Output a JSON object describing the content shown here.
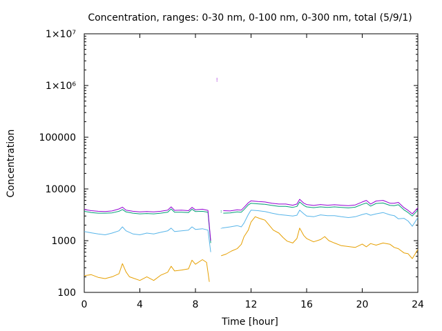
{
  "chart_data": {
    "type": "line",
    "title": "Concentration, ranges: 0-30 nm, 0-100 nm, 0-300 nm, total (5/9/1)",
    "xlabel": "Time [hour]",
    "ylabel": "Concentration",
    "xlim": [
      0,
      24
    ],
    "ylim": [
      100,
      10000000
    ],
    "y_scale": "log",
    "grid": false,
    "legend": "none",
    "x_ticks": [
      {
        "value": 0,
        "label": "0"
      },
      {
        "value": 4,
        "label": "4"
      },
      {
        "value": 8,
        "label": "8"
      },
      {
        "value": 12,
        "label": "12"
      },
      {
        "value": 16,
        "label": "16"
      },
      {
        "value": 20,
        "label": "20"
      },
      {
        "value": 24,
        "label": "24"
      }
    ],
    "y_ticks": [
      {
        "value": 100,
        "label": "100"
      },
      {
        "value": 1000,
        "label": "1000"
      },
      {
        "value": 10000,
        "label": "10000"
      },
      {
        "value": 100000,
        "label": "100000"
      },
      {
        "value": 1000000,
        "label": "1×10⁶"
      },
      {
        "value": 10000000,
        "label": "1×10⁷"
      }
    ],
    "series": [
      {
        "color": "#e69f00",
        "segments": [
          [
            [
              0,
              210
            ],
            [
              0.5,
              220
            ],
            [
              1,
              195
            ],
            [
              1.5,
              185
            ],
            [
              2,
              200
            ],
            [
              2.5,
              230
            ],
            [
              2.75,
              360
            ],
            [
              3,
              250
            ],
            [
              3.25,
              200
            ],
            [
              3.5,
              190
            ],
            [
              4,
              170
            ],
            [
              4.5,
              200
            ],
            [
              5,
              170
            ],
            [
              5.5,
              215
            ],
            [
              6,
              245
            ],
            [
              6.25,
              320
            ],
            [
              6.5,
              260
            ],
            [
              7,
              270
            ],
            [
              7.5,
              285
            ],
            [
              7.75,
              420
            ],
            [
              8,
              350
            ],
            [
              8.5,
              430
            ],
            [
              8.8,
              380
            ],
            [
              9.0,
              160
            ]
          ],
          [
            [
              9.85,
              510
            ],
            [
              10.2,
              550
            ],
            [
              10.6,
              630
            ],
            [
              11,
              700
            ],
            [
              11.3,
              850
            ],
            [
              11.5,
              1200
            ],
            [
              11.8,
              1600
            ],
            [
              12,
              2300
            ],
            [
              12.3,
              2900
            ],
            [
              12.6,
              2700
            ],
            [
              13,
              2500
            ],
            [
              13.3,
              2000
            ],
            [
              13.6,
              1600
            ],
            [
              14,
              1400
            ],
            [
              14.3,
              1150
            ],
            [
              14.6,
              980
            ],
            [
              15,
              900
            ],
            [
              15.3,
              1100
            ],
            [
              15.5,
              1750
            ],
            [
              15.8,
              1250
            ],
            [
              16,
              1100
            ],
            [
              16.5,
              950
            ],
            [
              17,
              1050
            ],
            [
              17.3,
              1200
            ],
            [
              17.6,
              1000
            ],
            [
              18,
              900
            ],
            [
              18.5,
              800
            ],
            [
              19,
              770
            ],
            [
              19.5,
              740
            ],
            [
              20,
              860
            ],
            [
              20.3,
              760
            ],
            [
              20.6,
              880
            ],
            [
              21,
              820
            ],
            [
              21.5,
              900
            ],
            [
              22,
              850
            ],
            [
              22.3,
              740
            ],
            [
              22.6,
              700
            ],
            [
              23,
              580
            ],
            [
              23.3,
              560
            ],
            [
              23.6,
              450
            ],
            [
              24,
              680
            ]
          ]
        ]
      },
      {
        "color": "#56b4e9",
        "segments": [
          [
            [
              0,
              1500
            ],
            [
              0.5,
              1420
            ],
            [
              1,
              1350
            ],
            [
              1.5,
              1300
            ],
            [
              2,
              1400
            ],
            [
              2.5,
              1550
            ],
            [
              2.75,
              1850
            ],
            [
              3,
              1550
            ],
            [
              3.5,
              1350
            ],
            [
              4,
              1300
            ],
            [
              4.5,
              1400
            ],
            [
              5,
              1350
            ],
            [
              5.5,
              1450
            ],
            [
              6,
              1550
            ],
            [
              6.25,
              1750
            ],
            [
              6.5,
              1500
            ],
            [
              7,
              1550
            ],
            [
              7.5,
              1600
            ],
            [
              7.75,
              1850
            ],
            [
              8,
              1650
            ],
            [
              8.5,
              1700
            ],
            [
              8.9,
              1600
            ],
            [
              9.1,
              600
            ]
          ],
          [
            [
              9.9,
              1750
            ],
            [
              10.5,
              1850
            ],
            [
              11,
              1950
            ],
            [
              11.3,
              1850
            ],
            [
              11.5,
              2200
            ],
            [
              11.8,
              3200
            ],
            [
              12,
              3900
            ],
            [
              12.5,
              3800
            ],
            [
              13,
              3650
            ],
            [
              13.5,
              3400
            ],
            [
              14,
              3200
            ],
            [
              14.5,
              3100
            ],
            [
              15,
              3000
            ],
            [
              15.3,
              3100
            ],
            [
              15.5,
              3900
            ],
            [
              15.8,
              3300
            ],
            [
              16,
              3000
            ],
            [
              16.5,
              2900
            ],
            [
              17,
              3150
            ],
            [
              17.5,
              3050
            ],
            [
              18,
              3050
            ],
            [
              18.5,
              2900
            ],
            [
              19,
              2800
            ],
            [
              19.5,
              2900
            ],
            [
              20,
              3200
            ],
            [
              20.3,
              3350
            ],
            [
              20.6,
              3100
            ],
            [
              21,
              3300
            ],
            [
              21.5,
              3500
            ],
            [
              22,
              3150
            ],
            [
              22.3,
              3050
            ],
            [
              22.6,
              2650
            ],
            [
              23,
              2700
            ],
            [
              23.3,
              2400
            ],
            [
              23.6,
              1900
            ],
            [
              24,
              2800
            ]
          ]
        ]
      },
      {
        "color": "#009e73",
        "segments": [
          [
            [
              0,
              3700
            ],
            [
              0.5,
              3500
            ],
            [
              1,
              3400
            ],
            [
              1.5,
              3400
            ],
            [
              2,
              3450
            ],
            [
              2.5,
              3700
            ],
            [
              2.75,
              4000
            ],
            [
              3,
              3600
            ],
            [
              3.5,
              3400
            ],
            [
              4,
              3300
            ],
            [
              4.5,
              3350
            ],
            [
              5,
              3300
            ],
            [
              5.5,
              3400
            ],
            [
              6,
              3550
            ],
            [
              6.25,
              4100
            ],
            [
              6.5,
              3550
            ],
            [
              7,
              3550
            ],
            [
              7.5,
              3500
            ],
            [
              7.75,
              4050
            ],
            [
              8,
              3650
            ],
            [
              8.5,
              3700
            ],
            [
              8.9,
              3550
            ],
            [
              9.1,
              900
            ]
          ],
          [
            [
              10.0,
              3400
            ],
            [
              10.5,
              3450
            ],
            [
              11,
              3600
            ],
            [
              11.3,
              3550
            ],
            [
              11.5,
              4000
            ],
            [
              11.8,
              4900
            ],
            [
              12,
              5300
            ],
            [
              12.5,
              5150
            ],
            [
              13,
              5050
            ],
            [
              13.5,
              4800
            ],
            [
              14,
              4600
            ],
            [
              14.5,
              4600
            ],
            [
              15,
              4400
            ],
            [
              15.3,
              4600
            ],
            [
              15.5,
              5600
            ],
            [
              15.8,
              4800
            ],
            [
              16,
              4500
            ],
            [
              16.5,
              4350
            ],
            [
              17,
              4500
            ],
            [
              17.5,
              4400
            ],
            [
              18,
              4500
            ],
            [
              18.5,
              4400
            ],
            [
              19,
              4300
            ],
            [
              19.5,
              4450
            ],
            [
              20,
              5050
            ],
            [
              20.3,
              5350
            ],
            [
              20.6,
              4650
            ],
            [
              21,
              5250
            ],
            [
              21.5,
              5350
            ],
            [
              22,
              4800
            ],
            [
              22.3,
              4750
            ],
            [
              22.6,
              4950
            ],
            [
              23,
              3950
            ],
            [
              23.3,
              3500
            ],
            [
              23.6,
              3000
            ],
            [
              24,
              3900
            ]
          ]
        ]
      },
      {
        "color": "#9400d3",
        "segments": [
          [
            [
              0,
              4000
            ],
            [
              0.5,
              3800
            ],
            [
              1,
              3700
            ],
            [
              1.5,
              3650
            ],
            [
              2,
              3750
            ],
            [
              2.5,
              4100
            ],
            [
              2.75,
              4450
            ],
            [
              3,
              3900
            ],
            [
              3.5,
              3700
            ],
            [
              4,
              3600
            ],
            [
              4.5,
              3650
            ],
            [
              5,
              3600
            ],
            [
              5.5,
              3700
            ],
            [
              6,
              3900
            ],
            [
              6.25,
              4500
            ],
            [
              6.5,
              3850
            ],
            [
              7,
              3900
            ],
            [
              7.5,
              3800
            ],
            [
              7.75,
              4400
            ],
            [
              8,
              3950
            ],
            [
              8.5,
              4050
            ],
            [
              8.9,
              3850
            ],
            [
              9.1,
              1000
            ]
          ],
          [
            [
              10.0,
              3800
            ],
            [
              10.5,
              3750
            ],
            [
              11,
              3950
            ],
            [
              11.3,
              3900
            ],
            [
              11.5,
              4400
            ],
            [
              11.8,
              5400
            ],
            [
              12,
              5900
            ],
            [
              12.5,
              5700
            ],
            [
              13,
              5600
            ],
            [
              13.5,
              5300
            ],
            [
              14,
              5100
            ],
            [
              14.5,
              5100
            ],
            [
              15,
              4850
            ],
            [
              15.3,
              5100
            ],
            [
              15.5,
              6300
            ],
            [
              15.8,
              5300
            ],
            [
              16,
              5000
            ],
            [
              16.5,
              4800
            ],
            [
              17,
              5000
            ],
            [
              17.5,
              4850
            ],
            [
              18,
              4950
            ],
            [
              18.5,
              4850
            ],
            [
              19,
              4750
            ],
            [
              19.5,
              4900
            ],
            [
              20,
              5600
            ],
            [
              20.3,
              6000
            ],
            [
              20.6,
              5100
            ],
            [
              21,
              5850
            ],
            [
              21.5,
              6000
            ],
            [
              22,
              5300
            ],
            [
              22.3,
              5300
            ],
            [
              22.6,
              5500
            ],
            [
              23,
              4350
            ],
            [
              23.3,
              3850
            ],
            [
              23.6,
              3300
            ],
            [
              24,
              4300
            ]
          ]
        ]
      }
    ],
    "gap_markers": [
      {
        "color": "#9400d3",
        "x": 9.55,
        "y": [
          1200000,
          1400000
        ]
      },
      {
        "color": "#009e73",
        "x": 9.85,
        "y": [
          3500,
          3900
        ]
      },
      {
        "color": "#56b4e9",
        "x": 9.85,
        "y": [
          1700,
          1800
        ]
      }
    ]
  }
}
